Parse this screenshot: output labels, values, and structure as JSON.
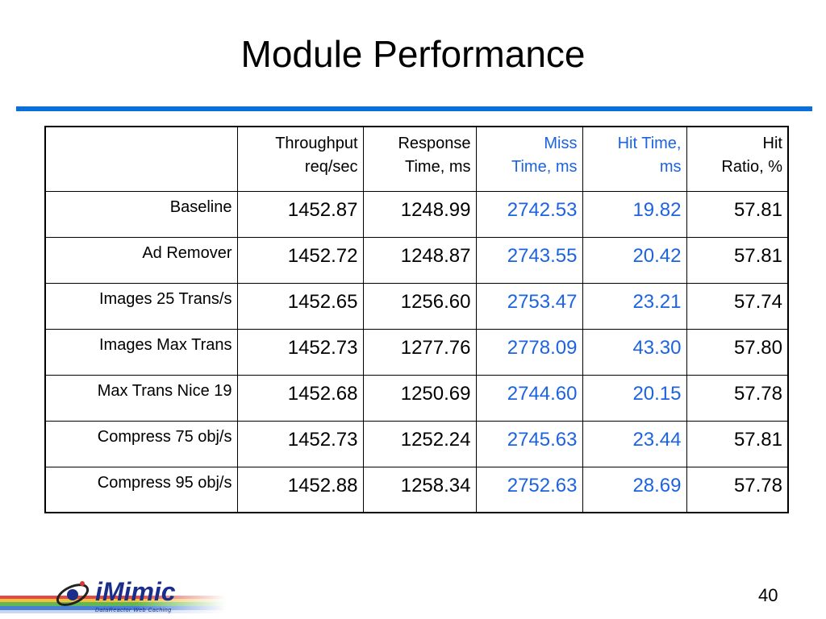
{
  "header": {
    "title": "Module Performance"
  },
  "table": {
    "columns": [
      [
        "Throughput",
        "req/sec"
      ],
      [
        "Response",
        "Time, ms"
      ],
      [
        "Miss",
        "Time, ms"
      ],
      [
        "Hit Time,",
        "ms"
      ],
      [
        "Hit",
        "Ratio, %"
      ]
    ],
    "rows": [
      [
        "Baseline",
        "1452.87",
        "1248.99",
        "2742.53",
        "19.82",
        "57.81"
      ],
      [
        "Ad Remover",
        "1452.72",
        "1248.87",
        "2743.55",
        "20.42",
        "57.81"
      ],
      [
        "Images 25 Trans/s",
        "1452.65",
        "1256.60",
        "2753.47",
        "23.21",
        "57.74"
      ],
      [
        "Images Max Trans",
        "1452.73",
        "1277.76",
        "2778.09",
        "43.30",
        "57.80"
      ],
      [
        "Max Trans Nice 19",
        "1452.68",
        "1250.69",
        "2744.60",
        "20.15",
        "57.78"
      ],
      [
        "Compress 75 obj/s",
        "1452.73",
        "1252.24",
        "2745.63",
        "23.44",
        "57.81"
      ],
      [
        "Compress 95 obj/s",
        "1452.88",
        "1258.34",
        "2752.63",
        "28.69",
        "57.78"
      ]
    ]
  },
  "footer": {
    "logo": "iMimic",
    "tagline": "DataReactor Web Caching",
    "page": "40"
  }
}
